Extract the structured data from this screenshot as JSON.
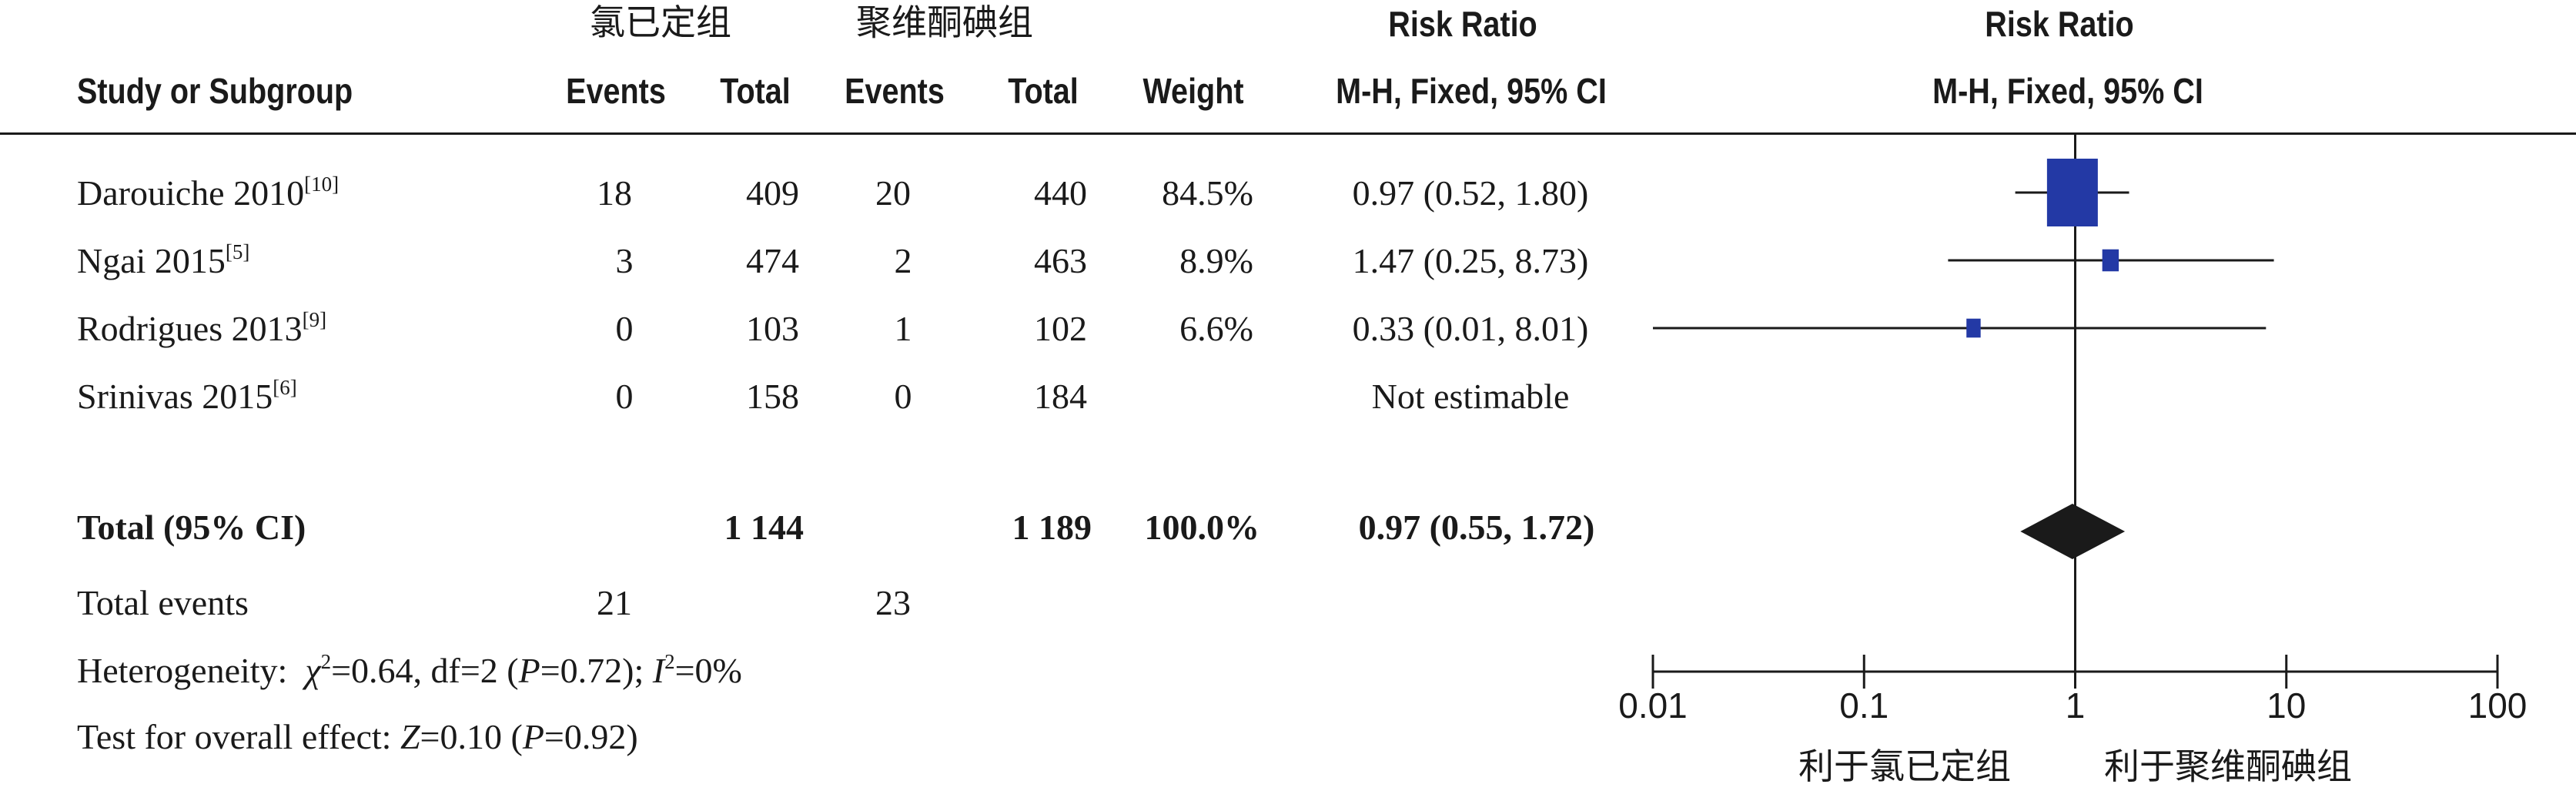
{
  "header": {
    "group1": "氯已定组",
    "group2": "聚维酮碘组",
    "risk_ratio": "Risk Ratio",
    "risk_ratio_plot": "Risk Ratio",
    "study_or_subgroup": "Study or Subgroup",
    "events1": "Events",
    "total1": "Total",
    "events2": "Events",
    "total2": "Total",
    "weight": "Weight",
    "method": "M-H, Fixed, 95% CI",
    "method_plot": "M-H, Fixed, 95% CI"
  },
  "studies": [
    {
      "name": "Darouiche 2010",
      "ref": "[10]",
      "events1": "18",
      "total1": "409",
      "events2": "20",
      "total2": "440",
      "weight": "84.5%",
      "ci_text": "0.97 (0.52, 1.80)"
    },
    {
      "name": "Ngai 2015",
      "ref": "[5]",
      "events1": "3",
      "total1": "474",
      "events2": "2",
      "total2": "463",
      "weight": "8.9%",
      "ci_text": "1.47 (0.25, 8.73)"
    },
    {
      "name": "Rodrigues 2013",
      "ref": "[9]",
      "events1": "0",
      "total1": "103",
      "events2": "1",
      "total2": "102",
      "weight": "6.6%",
      "ci_text": "0.33 (0.01, 8.01)"
    },
    {
      "name": "Srinivas 2015",
      "ref": "[6]",
      "events1": "0",
      "total1": "158",
      "events2": "0",
      "total2": "184",
      "weight": "",
      "ci_text": "Not estimable"
    }
  ],
  "total": {
    "label": "Total (95% CI)",
    "total1": "1 144",
    "total2": "1 189",
    "weight": "100.0%",
    "ci_text": "0.97 (0.55, 1.72)"
  },
  "total_events": {
    "label": "Total events",
    "events1": "21",
    "events2": "23"
  },
  "heterogeneity": {
    "label": "Heterogeneity:",
    "chi_symbol": "χ",
    "chi_sup": "2",
    "chi_rest": "=0.64, df=2 (",
    "p_symbol": "P",
    "p_rest": "=0.72); ",
    "i_symbol": "I",
    "i_sup": "2",
    "i_rest": "=0%"
  },
  "overall_effect": {
    "label": "Test for overall effect:",
    "z_symbol": "Z",
    "z_rest": "=0.10 (",
    "p_symbol": "P",
    "p_rest": "=0.92)"
  },
  "chart_data": {
    "type": "forest",
    "scale": "log",
    "xlim": [
      0.01,
      100
    ],
    "ticks": [
      "0.01",
      "0.1",
      "1",
      "10",
      "100"
    ],
    "reference_line": 1,
    "marker_color": "#2339a5",
    "diamond_color": "#1a1a1a",
    "studies": [
      {
        "name": "Darouiche 2010",
        "rr": 0.97,
        "lo": 0.52,
        "hi": 1.8,
        "weight": 84.5
      },
      {
        "name": "Ngai 2015",
        "rr": 1.47,
        "lo": 0.25,
        "hi": 8.73,
        "weight": 8.9
      },
      {
        "name": "Rodrigues 2013",
        "rr": 0.33,
        "lo": 0.01,
        "hi": 8.01,
        "weight": 6.6
      }
    ],
    "pooled": {
      "rr": 0.97,
      "lo": 0.55,
      "hi": 1.72
    },
    "favours_left": "利于氯已定组",
    "favours_right": "利于聚维酮碘组"
  }
}
